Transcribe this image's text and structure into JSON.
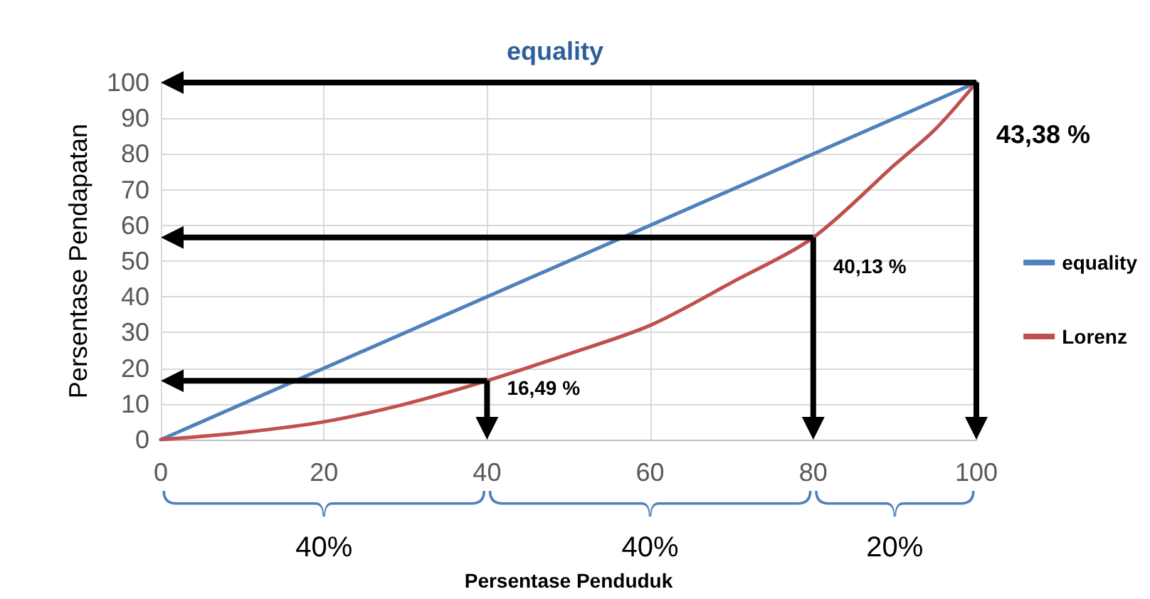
{
  "chart_data": {
    "type": "line",
    "title": "equality",
    "xlabel": "Persentase Penduduk",
    "ylabel": "Persentase Pendapatan",
    "series": [
      {
        "name": "equality",
        "color": "#4f81bd",
        "x": [
          0,
          100
        ],
        "values": [
          0,
          100
        ]
      },
      {
        "name": "Lorenz",
        "color": "#c0504d",
        "x": [
          0,
          10,
          20,
          30,
          40,
          50,
          60,
          70,
          80,
          90,
          95,
          100
        ],
        "values": [
          0,
          2,
          5,
          10,
          16.5,
          24,
          32,
          44,
          56.6,
          77,
          87,
          100
        ]
      }
    ],
    "xlim": [
      0,
      100
    ],
    "xticks": [
      0,
      20,
      40,
      60,
      80,
      100
    ],
    "ylim": [
      0,
      100
    ],
    "yticks": [
      0,
      10,
      20,
      30,
      40,
      50,
      60,
      70,
      80,
      90,
      100
    ],
    "grid": true,
    "legend": "right",
    "marker": "none",
    "line_style": "solid",
    "annotations": [
      {
        "text": "16,49 %",
        "x": 40,
        "y": 16.5
      },
      {
        "text": "40,13 %",
        "x": 80,
        "y": 56.6
      },
      {
        "text": "43,38 %",
        "x": 100,
        "y": 100
      },
      "40%",
      "40%",
      "20%"
    ]
  }
}
